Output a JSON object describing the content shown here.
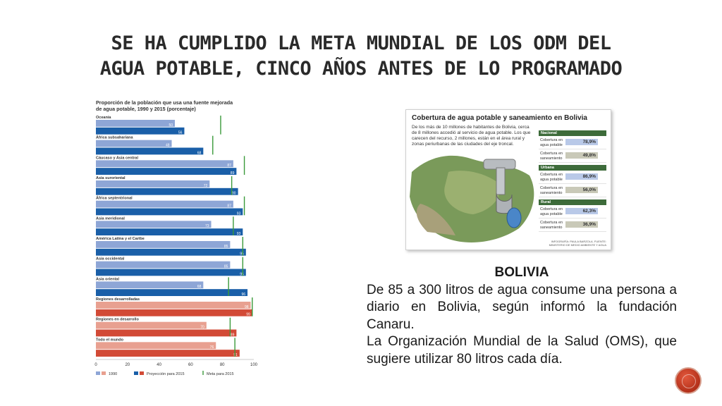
{
  "slide": {
    "title_line1": "SE HA CUMPLIDO LA META MUNDIAL DE LOS ODM DEL",
    "title_line2": "AGUA POTABLE, CINCO AÑOS ANTES DE LO PROGRAMADO"
  },
  "chart_data": {
    "type": "bar",
    "title_line1": "Proporción de la población que usa una fuente mejorada",
    "title_line2": "de agua potable, 1990 y 2015 (porcentaje)",
    "categories": [
      "Oceanía",
      "África subsahariana",
      "Cáucaso y Asia central",
      "Asia suroriental",
      "África septentrional",
      "Asia meridional",
      "América Latina y el Caribe",
      "Asia occidental",
      "Asia oriental",
      "Regiones desarrolladas",
      "Regiones en desarrollo",
      "Todo el mundo"
    ],
    "series": [
      {
        "name": "1990",
        "values": [
          50,
          48,
          87,
          72,
          87,
          73,
          85,
          85,
          68,
          98,
          70,
          76
        ]
      },
      {
        "name": "Proyección para 2015",
        "values": [
          56,
          68,
          89,
          90,
          93,
          93,
          95,
          95,
          96,
          99,
          89,
          91
        ]
      }
    ],
    "markers": {
      "name": "Meta para 2015",
      "values": [
        79,
        74,
        94,
        86,
        94,
        87,
        93,
        93,
        84,
        99,
        85,
        88
      ]
    },
    "xlim": [
      0,
      100
    ],
    "xticks": [
      0,
      20,
      40,
      60,
      80,
      100
    ],
    "colors": {
      "light_blue": "#8ea6d6",
      "dark_blue": "#1a5fa8",
      "light_red": "#e8a090",
      "dark_red": "#d24a36",
      "marker": "#3a9a3a"
    },
    "red_categories": [
      "Regiones desarrolladas",
      "Regiones en desarrollo",
      "Todo el mundo"
    ]
  },
  "bolivia_card": {
    "title": "Cobertura de agua potable y saneamiento en Bolivia",
    "description": "De los más de 10 millones de habitantes de Bolivia, cerca de 8 millones accedió al servicio de agua potable. Los que carecen del recurso, 2 millones, están en el área rural y zonas periurbanas de las ciudades del eje troncal.",
    "groups": [
      {
        "label": "Nacional",
        "rows": [
          {
            "label": "Cobertura en agua potable",
            "value": "78,9%"
          },
          {
            "label": "Cobertura en saneamiento",
            "value": "49,8%"
          }
        ]
      },
      {
        "label": "Urbana",
        "rows": [
          {
            "label": "Cobertura en agua potable",
            "value": "86,9%"
          },
          {
            "label": "Cobertura en saneamiento",
            "value": "56,0%"
          }
        ]
      },
      {
        "label": "Rural",
        "rows": [
          {
            "label": "Cobertura en agua potable",
            "value": "62,3%"
          },
          {
            "label": "Cobertura en saneamiento",
            "value": "36,9%"
          }
        ]
      }
    ],
    "source": "INFOGRAFÍA: PAULA BARZOLA. FUENTE: MINISTERIO DE MEDIO AMBIENTE Y AGUA"
  },
  "body": {
    "heading": "BOLIVIA",
    "paragraph1": "De 85 a 300 litros de agua consume una persona a diario en Bolivia, según informó la fundación Canaru.",
    "paragraph2": "La Organización Mundial de la Salud (OMS), que sugiere utilizar 80 litros cada día."
  }
}
